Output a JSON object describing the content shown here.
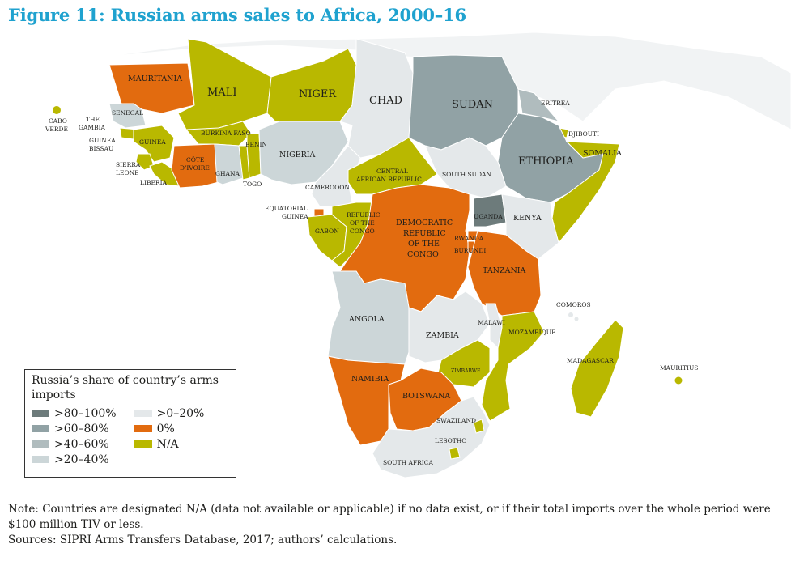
{
  "title": "Figure 11: Russian arms sales to Africa, 2000–16",
  "colors": {
    "c80_100": "#6d7b7b",
    "c60_80": "#91a2a5",
    "c40_60": "#b0bcbe",
    "c20_40": "#ccd6d8",
    "c0_20": "#e4e8ea",
    "zero": "#e26b0f",
    "na": "#b9b800",
    "background_land": "#f1f3f4"
  },
  "legend": {
    "title": "Russia’s share of country’s arms imports",
    "items": [
      {
        "label": ">80–100%",
        "color": "#6d7b7b"
      },
      {
        "label": ">60–80%",
        "color": "#91a2a5"
      },
      {
        "label": ">40–60%",
        "color": "#b0bcbe"
      },
      {
        "label": ">20–40%",
        "color": "#ccd6d8"
      },
      {
        "label": ">0–20%",
        "color": "#e4e8ea"
      },
      {
        "label": "0%",
        "color": "#e26b0f"
      },
      {
        "label": "N/A",
        "color": "#b9b800"
      }
    ]
  },
  "countries": {
    "mauritania": "MAURITANIA",
    "mali": "MALI",
    "niger": "NIGER",
    "chad": "CHAD",
    "sudan": "SUDAN",
    "eritrea": "ERITREA",
    "djibouti": "DJIBOUTI",
    "ethiopia": "ETHIOPIA",
    "somalia": "SOMALIA",
    "cabo_verde_1": "CABO",
    "cabo_verde_2": "VERDE",
    "gambia_1": "THE",
    "gambia_2": "GAMBIA",
    "senegal": "SENEGAL",
    "guinea_bissau_1": "GUINEA",
    "guinea_bissau_2": "BISSAU",
    "guinea": "GUINEA",
    "sierra_leone_1": "SIERRA",
    "sierra_leone_2": "LEONE",
    "liberia": "LIBERIA",
    "cote_divoire_1": "CÔTE",
    "cote_divoire_2": "D’IVOIRE",
    "burkina_faso": "BURKINA FASO",
    "ghana": "GHANA",
    "togo": "TOGO",
    "benin": "BENIN",
    "nigeria": "NIGERIA",
    "cameroon": "CAMEROOON",
    "car_1": "CENTRAL",
    "car_2": "AFRICAN REPUBLIC",
    "south_sudan": "SOUTH SUDAN",
    "eq_guinea_1": "EQUATORIAL",
    "eq_guinea_2": "GUINEA",
    "gabon": "GABON",
    "congo_1": "REPUBLIC",
    "congo_2": "OF THE",
    "congo_3": "CONGO",
    "drc_1": "DEMOCRATIC",
    "drc_2": "REPUBLIC",
    "drc_3": "OF THE",
    "drc_4": "CONGO",
    "uganda": "UGANDA",
    "kenya": "KENYA",
    "rwanda": "RWANDA",
    "burundi": "BURUNDI",
    "tanzania": "TANZANIA",
    "comoros": "COMOROS",
    "angola": "ANGOLA",
    "zambia": "ZAMBIA",
    "malawi": "MALAWI",
    "mozambique": "MOZAMBIQUE",
    "madagascar": "MADAGASCAR",
    "mauritius": "MAURITIUS",
    "zimbabwe": "ZIMBABWE",
    "namibia": "NAMIBIA",
    "botswana": "BOTSWANA",
    "swaziland": "SWAZILAND",
    "lesotho": "LESOTHO",
    "south_africa": "SOUTH AFRICA"
  },
  "notes": {
    "note": "Note: Countries are designated N/A (data not available or applicable) if no data exist, or if their total imports over the whole period were $100 million TIV or less.",
    "sources": "Sources: SIPRI Arms Transfers Database, 2017; authors’ calculations."
  }
}
